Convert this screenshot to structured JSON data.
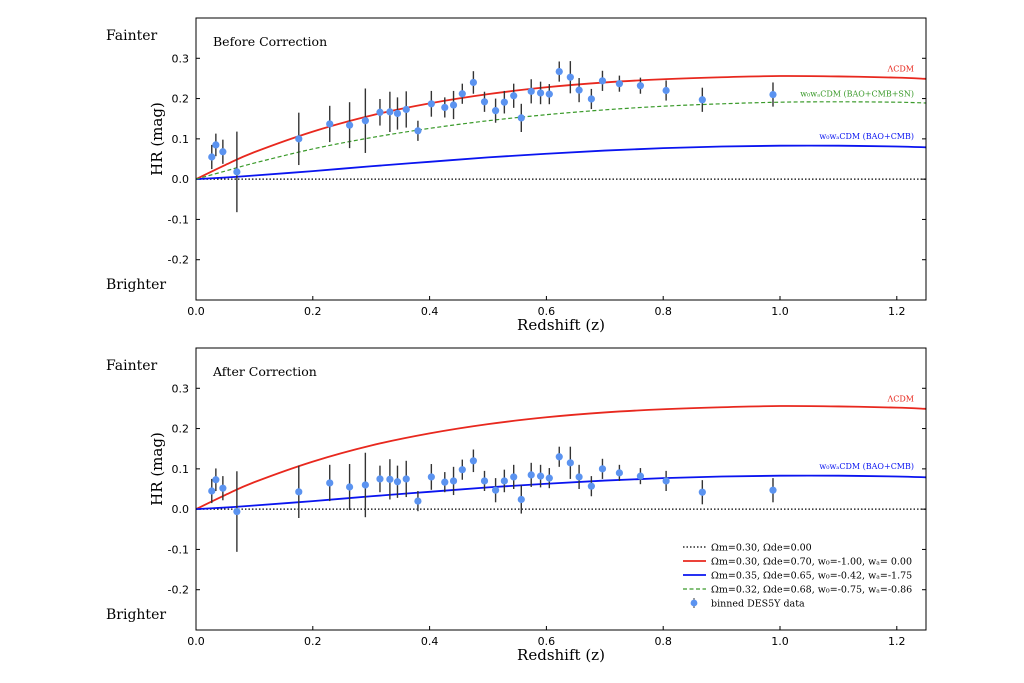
{
  "chart_data": [
    {
      "type": "scatter",
      "title": "Before Correction",
      "xlabel": "Redshift (z)",
      "ylabel": "HR (mag)",
      "side_labels": {
        "top": "Fainter",
        "bottom": "Brighter"
      },
      "xlim": [
        0,
        1.25
      ],
      "ylim": [
        -0.3,
        0.4
      ],
      "xticks": [
        "0.0",
        "0.2",
        "0.4",
        "0.6",
        "0.8",
        "1.0",
        "1.2"
      ],
      "yticks": [
        "-0.2",
        "-0.1",
        "0.0",
        "0.1",
        "0.2",
        "0.3"
      ],
      "curve_labels": {
        "lcdm": "ΛCDM",
        "green": "w₀wₐCDM (BAO+CMB+SN)",
        "blue": "w₀wₐCDM (BAO+CMB)"
      },
      "curves": [
        "zero",
        "lcdm",
        "blue",
        "green"
      ],
      "data": {
        "x": [
          0.027,
          0.034,
          0.046,
          0.07,
          0.176,
          0.229,
          0.263,
          0.29,
          0.315,
          0.332,
          0.345,
          0.36,
          0.38,
          0.403,
          0.426,
          0.441,
          0.456,
          0.475,
          0.494,
          0.513,
          0.528,
          0.544,
          0.557,
          0.574,
          0.59,
          0.605,
          0.622,
          0.641,
          0.656,
          0.677,
          0.696,
          0.725,
          0.761,
          0.805,
          0.867,
          0.988
        ],
        "y": [
          0.055,
          0.085,
          0.068,
          0.018,
          0.1,
          0.137,
          0.134,
          0.145,
          0.166,
          0.167,
          0.163,
          0.173,
          0.12,
          0.187,
          0.178,
          0.184,
          0.212,
          0.24,
          0.192,
          0.17,
          0.191,
          0.207,
          0.152,
          0.218,
          0.214,
          0.211,
          0.267,
          0.253,
          0.221,
          0.199,
          0.244,
          0.237,
          0.232,
          0.22,
          0.197,
          0.21
        ],
        "err": [
          0.03,
          0.028,
          0.03,
          0.1,
          0.065,
          0.045,
          0.057,
          0.08,
          0.033,
          0.05,
          0.04,
          0.045,
          0.025,
          0.032,
          0.025,
          0.035,
          0.025,
          0.028,
          0.025,
          0.03,
          0.028,
          0.03,
          0.035,
          0.03,
          0.028,
          0.025,
          0.025,
          0.04,
          0.03,
          0.025,
          0.025,
          0.02,
          0.02,
          0.025,
          0.03,
          0.03
        ]
      }
    },
    {
      "type": "scatter",
      "title": "After Correction",
      "xlabel": "Redshift (z)",
      "ylabel": "HR (mag)",
      "side_labels": {
        "top": "Fainter",
        "bottom": "Brighter"
      },
      "xlim": [
        0,
        1.25
      ],
      "ylim": [
        -0.3,
        0.4
      ],
      "xticks": [
        "0.0",
        "0.2",
        "0.4",
        "0.6",
        "0.8",
        "1.0",
        "1.2"
      ],
      "yticks": [
        "-0.2",
        "-0.1",
        "0.0",
        "0.1",
        "0.2",
        "0.3"
      ],
      "curve_labels": {
        "lcdm": "ΛCDM",
        "blue": "w₀wₐCDM (BAO+CMB)"
      },
      "curves": [
        "zero",
        "lcdm",
        "blue"
      ],
      "legend": {
        "placement": "lower-right",
        "entries": [
          {
            "key": "zero",
            "label": "Ωm=0.30, Ωde=0.00"
          },
          {
            "key": "lcdm",
            "label": "Ωm=0.30, Ωde=0.70, w₀=-1.00, wₐ= 0.00"
          },
          {
            "key": "blue",
            "label": "Ωm=0.35, Ωde=0.65, w₀=-0.42, wₐ=-1.75"
          },
          {
            "key": "green",
            "label": "Ωm=0.32, Ωde=0.68, w₀=-0.75, wₐ=-0.86"
          },
          {
            "key": "data",
            "label": "binned DES5Y data"
          }
        ]
      },
      "data": {
        "x": [
          0.027,
          0.034,
          0.046,
          0.07,
          0.176,
          0.229,
          0.263,
          0.29,
          0.315,
          0.332,
          0.345,
          0.36,
          0.38,
          0.403,
          0.426,
          0.441,
          0.456,
          0.475,
          0.494,
          0.513,
          0.528,
          0.544,
          0.557,
          0.574,
          0.59,
          0.605,
          0.622,
          0.641,
          0.656,
          0.677,
          0.696,
          0.725,
          0.761,
          0.805,
          0.867,
          0.988
        ],
        "y": [
          0.045,
          0.073,
          0.052,
          -0.006,
          0.043,
          0.065,
          0.055,
          0.06,
          0.075,
          0.074,
          0.068,
          0.075,
          0.02,
          0.08,
          0.067,
          0.07,
          0.098,
          0.12,
          0.07,
          0.047,
          0.07,
          0.08,
          0.024,
          0.085,
          0.082,
          0.077,
          0.13,
          0.115,
          0.08,
          0.057,
          0.1,
          0.09,
          0.082,
          0.07,
          0.042,
          0.047
        ],
        "err": [
          0.03,
          0.028,
          0.03,
          0.1,
          0.065,
          0.045,
          0.057,
          0.08,
          0.033,
          0.05,
          0.04,
          0.045,
          0.025,
          0.032,
          0.025,
          0.035,
          0.025,
          0.028,
          0.025,
          0.03,
          0.028,
          0.03,
          0.035,
          0.03,
          0.028,
          0.025,
          0.025,
          0.04,
          0.03,
          0.025,
          0.025,
          0.02,
          0.02,
          0.025,
          0.03,
          0.03
        ]
      }
    }
  ],
  "model_curves": {
    "z": [
      0,
      0.05,
      0.1,
      0.2,
      0.3,
      0.4,
      0.5,
      0.6,
      0.7,
      0.8,
      0.9,
      1.0,
      1.1,
      1.2,
      1.25
    ],
    "zero": [
      0,
      0,
      0,
      0,
      0,
      0,
      0,
      0,
      0,
      0,
      0,
      0,
      0,
      0,
      0
    ],
    "lcdm": [
      0,
      0.035,
      0.067,
      0.118,
      0.158,
      0.188,
      0.211,
      0.228,
      0.24,
      0.248,
      0.253,
      0.256,
      0.255,
      0.252,
      0.249
    ],
    "blue": [
      0,
      0.004,
      0.009,
      0.02,
      0.032,
      0.043,
      0.054,
      0.063,
      0.071,
      0.077,
      0.081,
      0.083,
      0.083,
      0.081,
      0.079
    ],
    "green": [
      0,
      0.02,
      0.04,
      0.075,
      0.103,
      0.126,
      0.145,
      0.16,
      0.172,
      0.181,
      0.187,
      0.191,
      0.192,
      0.191,
      0.189
    ]
  },
  "colors": {
    "lcdm": "#e8281e",
    "blue": "#0a14f0",
    "green": "#3a9a2a",
    "zero": "#000000",
    "data": "#5b93f0",
    "err": "#333333"
  }
}
